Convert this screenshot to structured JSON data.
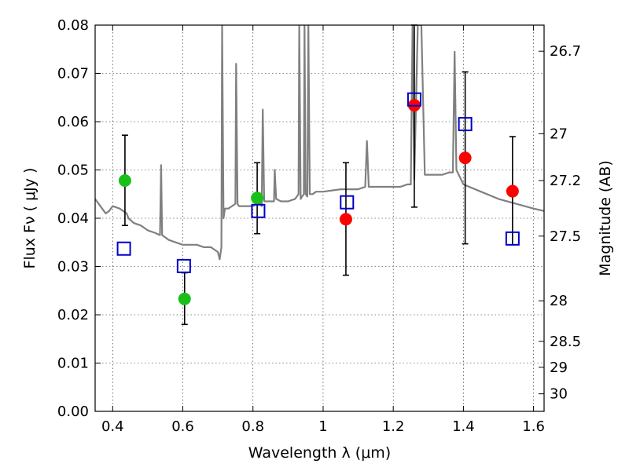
{
  "chart_data": {
    "type": "scatter",
    "title": "",
    "xlabel": "Wavelength  λ (μm)",
    "ylabel": "Flux  Fν  ( μJy )",
    "ylabel_right": "Magnitude (AB)",
    "xlim": [
      0.35,
      1.63
    ],
    "ylim": [
      0.0,
      0.08
    ],
    "grid": true,
    "x_ticks": [
      0.4,
      0.6,
      0.8,
      1.0,
      1.2,
      1.4,
      1.6
    ],
    "x_tick_labels": [
      "0.4",
      "0.6",
      "0.8",
      "1",
      "1.2",
      "1.4",
      "1.6"
    ],
    "y_ticks": [
      0.0,
      0.01,
      0.02,
      0.03,
      0.04,
      0.05,
      0.06,
      0.07,
      0.08
    ],
    "y_tick_labels": [
      "0.00",
      "0.01",
      "0.02",
      "0.03",
      "0.04",
      "0.05",
      "0.06",
      "0.07",
      "0.08"
    ],
    "right_axis_ticks": [
      {
        "label": "26.7",
        "flux": 0.0746
      },
      {
        "label": "27",
        "flux": 0.0575
      },
      {
        "label": "27.2",
        "flux": 0.0478
      },
      {
        "label": "27.5",
        "flux": 0.0363
      },
      {
        "label": "28",
        "flux": 0.0229
      },
      {
        "label": "28.5",
        "flux": 0.0145
      },
      {
        "label": "29",
        "flux": 0.00912
      },
      {
        "label": "30",
        "flux": 0.00363
      }
    ],
    "series": [
      {
        "type": "line",
        "color": "#808080",
        "x": [
          0.35,
          0.36,
          0.37,
          0.38,
          0.39,
          0.4,
          0.42,
          0.44,
          0.445,
          0.46,
          0.48,
          0.5,
          0.52,
          0.535,
          0.538,
          0.541,
          0.56,
          0.58,
          0.6,
          0.62,
          0.64,
          0.66,
          0.68,
          0.7,
          0.705,
          0.71,
          0.712,
          0.716,
          0.72,
          0.73,
          0.74,
          0.75,
          0.752,
          0.756,
          0.76,
          0.78,
          0.8,
          0.81,
          0.82,
          0.825,
          0.828,
          0.832,
          0.84,
          0.86,
          0.862,
          0.866,
          0.88,
          0.9,
          0.92,
          0.93,
          0.932,
          0.936,
          0.94,
          0.945,
          0.947,
          0.95,
          0.955,
          0.958,
          0.962,
          0.97,
          0.98,
          1.0,
          1.05,
          1.1,
          1.12,
          1.125,
          1.13,
          1.15,
          1.2,
          1.22,
          1.24,
          1.25,
          1.255,
          1.26,
          1.27,
          1.28,
          1.29,
          1.3,
          1.32,
          1.34,
          1.36,
          1.37,
          1.375,
          1.38,
          1.4,
          1.45,
          1.5,
          1.55,
          1.6,
          1.63
        ],
        "y": [
          0.044,
          0.043,
          0.042,
          0.041,
          0.0415,
          0.0425,
          0.042,
          0.041,
          0.04,
          0.039,
          0.0385,
          0.0375,
          0.037,
          0.0365,
          0.051,
          0.0365,
          0.0355,
          0.035,
          0.0345,
          0.0345,
          0.0345,
          0.034,
          0.034,
          0.033,
          0.0315,
          0.034,
          0.08,
          0.04,
          0.042,
          0.042,
          0.0425,
          0.043,
          0.072,
          0.043,
          0.0425,
          0.0425,
          0.0425,
          0.043,
          0.043,
          0.0425,
          0.0625,
          0.0435,
          0.0435,
          0.0435,
          0.05,
          0.044,
          0.0435,
          0.0435,
          0.044,
          0.045,
          0.08,
          0.044,
          0.0445,
          0.045,
          0.08,
          0.045,
          0.0445,
          0.08,
          0.045,
          0.045,
          0.0455,
          0.0455,
          0.046,
          0.046,
          0.0465,
          0.056,
          0.0465,
          0.0465,
          0.0465,
          0.0465,
          0.047,
          0.047,
          0.08,
          0.048,
          0.08,
          0.08,
          0.049,
          0.049,
          0.049,
          0.049,
          0.0495,
          0.0495,
          0.0745,
          0.05,
          0.047,
          0.0455,
          0.044,
          0.043,
          0.042,
          0.0415
        ]
      },
      {
        "type": "scatter",
        "marker": "circle",
        "color": "#19c019",
        "x": [
          0.435,
          0.605,
          0.812
        ],
        "y": [
          0.0478,
          0.0233,
          0.0442
        ],
        "yerr_low": [
          0.0385,
          0.018,
          0.0368
        ],
        "yerr_high": [
          0.0572,
          0.0287,
          0.0515
        ]
      },
      {
        "type": "scatter",
        "marker": "circle",
        "color": "#ff0000",
        "x": [
          1.065,
          1.26,
          1.405,
          1.54
        ],
        "y": [
          0.0398,
          0.0634,
          0.0525,
          0.0456
        ],
        "yerr_low": [
          0.0282,
          0.0423,
          0.0347,
          0.0345
        ],
        "yerr_high": [
          0.0515,
          0.08,
          0.0703,
          0.0569
        ]
      },
      {
        "type": "scatter",
        "marker": "square-open",
        "color": "#0000cc",
        "x": [
          0.432,
          0.603,
          0.815,
          1.068,
          1.26,
          1.405,
          1.54
        ],
        "y": [
          0.0337,
          0.0301,
          0.0415,
          0.0433,
          0.0646,
          0.0595,
          0.0358
        ]
      }
    ]
  }
}
